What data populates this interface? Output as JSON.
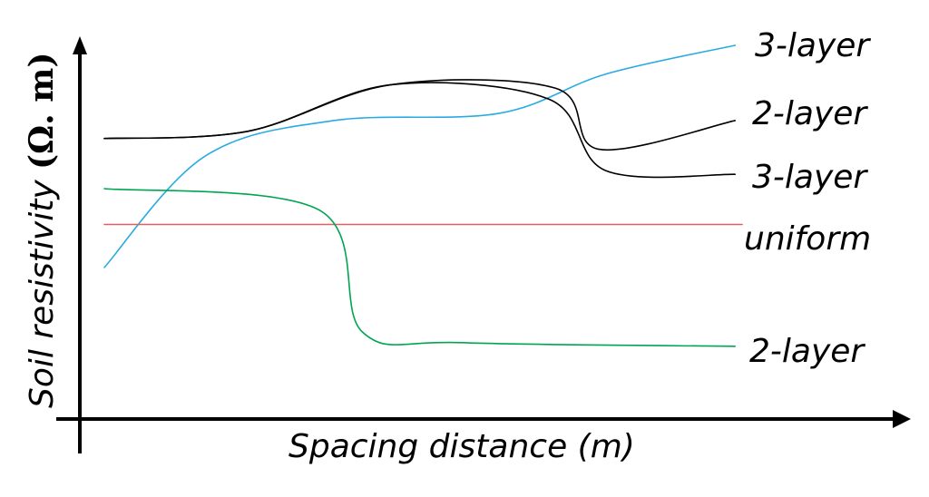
{
  "chart_data": {
    "type": "line",
    "title": "",
    "xlabel": "Spacing distance (m)",
    "ylabel_text": "Soil resistivity ",
    "ylabel_unit": "(Ω. m)",
    "grid": false,
    "legend": "inline-right",
    "series": [
      {
        "name": "3-layer",
        "color": "#29abe2",
        "points": [
          [
            0,
            38
          ],
          [
            14,
            69
          ],
          [
            32,
            79
          ],
          [
            55,
            81
          ],
          [
            70,
            92
          ],
          [
            88,
            100
          ]
        ]
      },
      {
        "name": "2-layer",
        "color": "#000000",
        "points": [
          [
            0,
            74
          ],
          [
            20,
            76
          ],
          [
            40,
            89
          ],
          [
            63,
            88
          ],
          [
            69,
            71
          ],
          [
            88,
            79
          ]
        ]
      },
      {
        "name": "3-layer",
        "color": "#000000",
        "points": [
          [
            0,
            74
          ],
          [
            20,
            76
          ],
          [
            40,
            89
          ],
          [
            62,
            85
          ],
          [
            70,
            65
          ],
          [
            88,
            64
          ]
        ]
      },
      {
        "name": "uniform",
        "color": "#e06060",
        "points": [
          [
            0,
            50
          ],
          [
            89,
            50
          ]
        ]
      },
      {
        "name": "2-layer",
        "color": "#00a550",
        "points": [
          [
            0,
            60
          ],
          [
            30,
            54
          ],
          [
            36,
            20
          ],
          [
            50,
            17
          ],
          [
            88,
            16
          ]
        ]
      }
    ]
  }
}
